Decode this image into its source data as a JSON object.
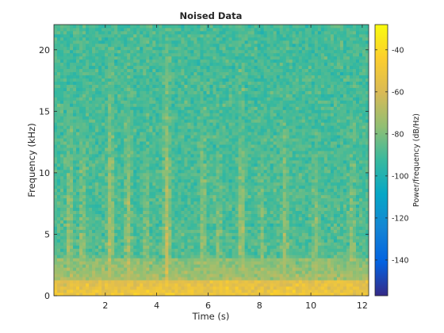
{
  "chart_data": {
    "type": "heatmap",
    "title": "Noised Data",
    "xlabel": "Time (s)",
    "ylabel": "Frequency (kHz)",
    "xlim": [
      0,
      12.25
    ],
    "ylim": [
      0,
      22.05
    ],
    "xticks": [
      2,
      4,
      6,
      8,
      10,
      12
    ],
    "yticks": [
      0,
      5,
      10,
      15,
      20
    ],
    "colorbar": {
      "label": "Power/frequency (dB/Hz)",
      "range": [
        -157,
        -28
      ],
      "ticks": [
        -140,
        -120,
        -100,
        -80,
        -60,
        -40
      ],
      "colormap": "parula"
    },
    "grid": false,
    "background_level_db": -90,
    "low_band": {
      "freq_khz": [
        0,
        1
      ],
      "level_db": -55
    },
    "events": [
      {
        "time_s": 0.6,
        "level_db": -65
      },
      {
        "time_s": 1.1,
        "level_db": -68
      },
      {
        "time_s": 2.2,
        "level_db": -60
      },
      {
        "time_s": 2.9,
        "level_db": -64
      },
      {
        "time_s": 3.6,
        "level_db": -70
      },
      {
        "time_s": 4.4,
        "level_db": -58
      },
      {
        "time_s": 5.8,
        "level_db": -66
      },
      {
        "time_s": 6.4,
        "level_db": -70
      },
      {
        "time_s": 7.3,
        "level_db": -62
      },
      {
        "time_s": 8.1,
        "level_db": -72
      },
      {
        "time_s": 9.0,
        "level_db": -66
      },
      {
        "time_s": 10.2,
        "level_db": -70
      },
      {
        "time_s": 11.6,
        "level_db": -68
      }
    ]
  }
}
